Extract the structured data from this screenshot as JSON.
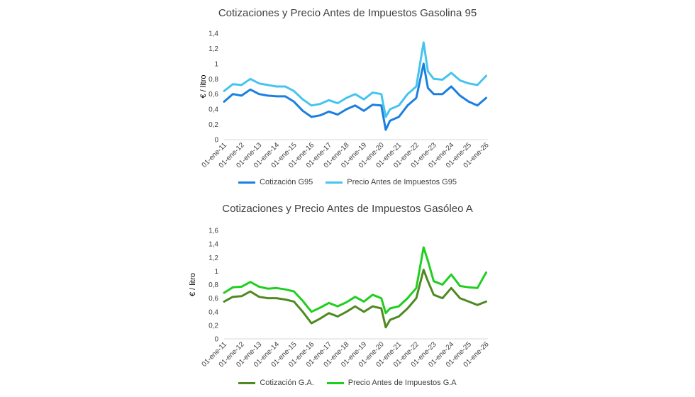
{
  "chart_data": [
    {
      "type": "line",
      "title": "Cotizaciones y Precio Antes de Impuestos Gasolina 95",
      "ylabel": "€ / litro",
      "ylim": [
        0,
        1.4
      ],
      "yticks": [
        "0",
        "0,2",
        "0,4",
        "0,6",
        "0,8",
        "1",
        "1,2",
        "1,4"
      ],
      "x_tick_labels": [
        "01-ene-11",
        "01-ene-12",
        "01-ene-13",
        "01-ene-14",
        "01-ene-15",
        "01-ene-16",
        "01-ene-17",
        "01-ene-18",
        "01-ene-19",
        "01-ene-20",
        "01-ene-21",
        "01-ene-22",
        "01-ene-23",
        "01-ene-24",
        "01-ene-25",
        "01-ene-26"
      ],
      "x": [
        "2011-01",
        "2011-07",
        "2012-01",
        "2012-07",
        "2013-01",
        "2013-07",
        "2014-01",
        "2014-07",
        "2015-01",
        "2015-07",
        "2016-01",
        "2016-07",
        "2017-01",
        "2017-07",
        "2018-01",
        "2018-07",
        "2019-01",
        "2019-07",
        "2020-01",
        "2020-04",
        "2020-07",
        "2021-01",
        "2021-07",
        "2022-01",
        "2022-06",
        "2022-09",
        "2023-01",
        "2023-07",
        "2024-01",
        "2024-07",
        "2025-01",
        "2025-07",
        "2026-01"
      ],
      "legend_position": "bottom",
      "grid": false,
      "series": [
        {
          "name": "Cotización G95",
          "color": "#1a7fe0",
          "values": [
            0.5,
            0.6,
            0.58,
            0.66,
            0.6,
            0.58,
            0.57,
            0.57,
            0.5,
            0.38,
            0.3,
            0.32,
            0.37,
            0.33,
            0.4,
            0.45,
            0.38,
            0.46,
            0.45,
            0.13,
            0.25,
            0.3,
            0.45,
            0.55,
            1.0,
            0.68,
            0.6,
            0.6,
            0.7,
            0.58,
            0.5,
            0.45,
            0.55
          ]
        },
        {
          "name": "Precio Antes de Impuestos G95",
          "color": "#45c4f0",
          "values": [
            0.64,
            0.73,
            0.72,
            0.8,
            0.74,
            0.72,
            0.7,
            0.7,
            0.64,
            0.53,
            0.45,
            0.47,
            0.52,
            0.48,
            0.55,
            0.6,
            0.53,
            0.62,
            0.6,
            0.3,
            0.4,
            0.45,
            0.6,
            0.7,
            1.28,
            0.9,
            0.8,
            0.79,
            0.88,
            0.78,
            0.74,
            0.72,
            0.84
          ]
        }
      ]
    },
    {
      "type": "line",
      "title": "Cotizaciones y Precio Antes de Impuestos Gasóleo A",
      "ylabel": "€ / litro",
      "ylim": [
        0,
        1.6
      ],
      "yticks": [
        "0",
        "0,2",
        "0,4",
        "0,6",
        "0,8",
        "1",
        "1,2",
        "1,4",
        "1,6"
      ],
      "x_tick_labels": [
        "01-ene-11",
        "01-ene-12",
        "01-ene-13",
        "01-ene-14",
        "01-ene-15",
        "01-ene-16",
        "01-ene-17",
        "01-ene-18",
        "01-ene-19",
        "01-ene-20",
        "01-ene-21",
        "01-ene-22",
        "01-ene-23",
        "01-ene-24",
        "01-ene-25",
        "01-ene-26"
      ],
      "x": [
        "2011-01",
        "2011-07",
        "2012-01",
        "2012-07",
        "2013-01",
        "2013-07",
        "2014-01",
        "2014-07",
        "2015-01",
        "2015-07",
        "2016-01",
        "2016-07",
        "2017-01",
        "2017-07",
        "2018-01",
        "2018-07",
        "2019-01",
        "2019-07",
        "2020-01",
        "2020-04",
        "2020-07",
        "2021-01",
        "2021-07",
        "2022-01",
        "2022-06",
        "2022-09",
        "2023-01",
        "2023-07",
        "2024-01",
        "2024-07",
        "2025-01",
        "2025-07",
        "2026-01"
      ],
      "legend_position": "bottom",
      "grid": false,
      "series": [
        {
          "name": "Cotización G.A.",
          "color": "#4e8a22",
          "values": [
            0.55,
            0.62,
            0.63,
            0.7,
            0.62,
            0.6,
            0.6,
            0.58,
            0.55,
            0.4,
            0.23,
            0.3,
            0.38,
            0.33,
            0.4,
            0.48,
            0.4,
            0.48,
            0.45,
            0.17,
            0.28,
            0.33,
            0.45,
            0.6,
            1.02,
            0.85,
            0.65,
            0.6,
            0.75,
            0.6,
            0.55,
            0.5,
            0.55
          ]
        },
        {
          "name": "Precio Antes de Impuestos G.A",
          "color": "#1fcf1f",
          "values": [
            0.68,
            0.76,
            0.77,
            0.84,
            0.77,
            0.74,
            0.75,
            0.73,
            0.7,
            0.56,
            0.4,
            0.46,
            0.53,
            0.48,
            0.54,
            0.62,
            0.55,
            0.65,
            0.6,
            0.38,
            0.45,
            0.48,
            0.6,
            0.75,
            1.35,
            1.15,
            0.85,
            0.8,
            0.95,
            0.78,
            0.76,
            0.75,
            0.98
          ]
        }
      ]
    }
  ]
}
